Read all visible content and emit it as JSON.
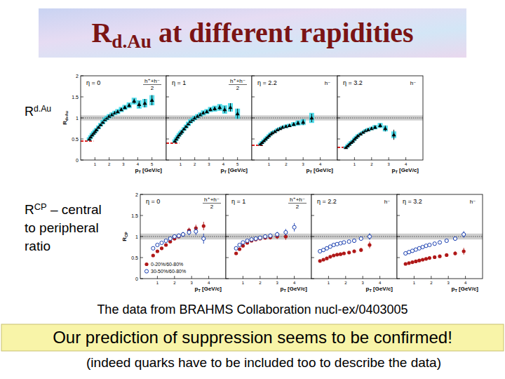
{
  "slide": {
    "title": "Rd.Au at different rapidities",
    "rdau_label": "Rd.Au",
    "rcp_label": [
      "RCP – central",
      "to peripheral",
      "ratio"
    ],
    "source": "The data from BRAHMS Collaboration nucl-ex/0403005",
    "highlight": "Our prediction of suppression seems to be confirmed!",
    "note": "(indeed quarks have to be included too to describe the data)"
  },
  "chart_data": [
    {
      "type": "scatter",
      "title": "η = 0",
      "particle": [
        "h⁺+h⁻",
        "2"
      ],
      "x_label": "pT [GeV/c]",
      "y_label": "Rd+Au",
      "xlim": [
        0,
        6
      ],
      "ylim": [
        0,
        2
      ],
      "xticks": [
        1,
        2,
        3,
        4,
        5
      ],
      "yticks": [
        0,
        0.5,
        1,
        1.5,
        2
      ],
      "tick_labels": true,
      "reference": 1,
      "norm_band": [
        0.94,
        1.06
      ],
      "series": [
        {
          "type": "line",
          "line_style": "dashed",
          "color": "#e02020",
          "x": [
            0,
            0.9
          ],
          "values": [
            0.45,
            0.45
          ]
        },
        {
          "type": "scatter",
          "marker": "triangle",
          "color": "#000000",
          "x": [
            0.6,
            0.7,
            0.8,
            0.9,
            1.0,
            1.1,
            1.25,
            1.4,
            1.55,
            1.7,
            1.85,
            2.0,
            2.2,
            2.4,
            2.6,
            2.85,
            3.1,
            3.4,
            3.75,
            4.1,
            4.5,
            5.0
          ],
          "values": [
            0.5,
            0.55,
            0.6,
            0.64,
            0.68,
            0.72,
            0.78,
            0.84,
            0.9,
            0.96,
            1.0,
            1.04,
            1.08,
            1.12,
            1.15,
            1.2,
            1.25,
            1.3,
            1.4,
            1.32,
            1.35,
            1.42
          ],
          "errors": [
            0.01,
            0.01,
            0.01,
            0.01,
            0.01,
            0.01,
            0.01,
            0.01,
            0.01,
            0.01,
            0.01,
            0.02,
            0.02,
            0.02,
            0.03,
            0.03,
            0.04,
            0.05,
            0.06,
            0.08,
            0.1,
            0.12
          ],
          "syst": [
            0.04,
            0.04,
            0.04,
            0.04,
            0.04,
            0.04,
            0.04,
            0.04,
            0.05,
            0.05,
            0.05,
            0.05,
            0.05,
            0.05,
            0.06,
            0.06,
            0.06,
            0.07,
            0.08,
            0.1,
            0.1,
            0.12
          ]
        }
      ]
    },
    {
      "type": "scatter",
      "title": "η = 1",
      "particle": [
        "h⁺+h⁻",
        "2"
      ],
      "x_label": "pT [GeV/c]",
      "xlim": [
        0,
        6
      ],
      "ylim": [
        0,
        2
      ],
      "xticks": [
        1,
        2,
        3,
        4,
        5
      ],
      "yticks": [
        0,
        0.5,
        1,
        1.5,
        2
      ],
      "tick_labels": "x",
      "reference": 1,
      "norm_band": [
        0.94,
        1.06
      ],
      "series": [
        {
          "type": "line",
          "line_style": "dashed",
          "color": "#e02020",
          "x": [
            0,
            0.9
          ],
          "values": [
            0.4,
            0.4
          ]
        },
        {
          "type": "scatter",
          "marker": "triangle",
          "color": "#000000",
          "x": [
            0.6,
            0.7,
            0.8,
            0.9,
            1.0,
            1.1,
            1.25,
            1.4,
            1.55,
            1.7,
            1.85,
            2.0,
            2.2,
            2.4,
            2.6,
            2.85,
            3.1,
            3.4,
            3.75,
            4.1,
            4.5,
            5.0
          ],
          "values": [
            0.45,
            0.5,
            0.55,
            0.6,
            0.64,
            0.68,
            0.74,
            0.8,
            0.86,
            0.92,
            0.96,
            1.0,
            1.04,
            1.08,
            1.12,
            1.15,
            1.2,
            1.22,
            1.25,
            1.2,
            1.25,
            1.1
          ],
          "errors": [
            0.01,
            0.01,
            0.01,
            0.01,
            0.01,
            0.01,
            0.01,
            0.01,
            0.01,
            0.01,
            0.01,
            0.02,
            0.02,
            0.02,
            0.03,
            0.03,
            0.04,
            0.05,
            0.06,
            0.08,
            0.1,
            0.12
          ],
          "syst": [
            0.04,
            0.04,
            0.04,
            0.04,
            0.04,
            0.04,
            0.04,
            0.04,
            0.05,
            0.05,
            0.05,
            0.05,
            0.05,
            0.05,
            0.06,
            0.06,
            0.06,
            0.07,
            0.08,
            0.1,
            0.1,
            0.12
          ]
        }
      ]
    },
    {
      "type": "scatter",
      "title": "η = 2.2",
      "particle": "h⁻",
      "x_label": "pT [GeV/c]",
      "xlim": [
        0,
        5
      ],
      "ylim": [
        0,
        2
      ],
      "xticks": [
        1,
        2,
        3,
        4
      ],
      "yticks": [
        0,
        0.5,
        1,
        1.5,
        2
      ],
      "tick_labels": "x",
      "reference": 1,
      "norm_band": [
        0.94,
        1.06
      ],
      "series": [
        {
          "type": "line",
          "line_style": "dashed",
          "color": "#e02020",
          "x": [
            0,
            0.7
          ],
          "values": [
            0.35,
            0.35
          ]
        },
        {
          "type": "scatter",
          "marker": "triangle",
          "color": "#000000",
          "x": [
            0.5,
            0.6,
            0.7,
            0.8,
            0.9,
            1.0,
            1.1,
            1.2,
            1.35,
            1.5,
            1.65,
            1.8,
            2.0,
            2.2,
            2.45,
            2.7,
            3.0,
            3.5
          ],
          "values": [
            0.38,
            0.42,
            0.46,
            0.5,
            0.54,
            0.58,
            0.62,
            0.65,
            0.68,
            0.72,
            0.75,
            0.78,
            0.8,
            0.82,
            0.85,
            0.88,
            0.9,
            1.0
          ],
          "errors": [
            0.01,
            0.01,
            0.01,
            0.01,
            0.01,
            0.01,
            0.01,
            0.01,
            0.01,
            0.01,
            0.02,
            0.02,
            0.02,
            0.03,
            0.04,
            0.05,
            0.07,
            0.1
          ],
          "syst": [
            0.03,
            0.03,
            0.03,
            0.03,
            0.03,
            0.03,
            0.03,
            0.03,
            0.03,
            0.03,
            0.03,
            0.03,
            0.04,
            0.04,
            0.05,
            0.06,
            0.07,
            0.12
          ]
        }
      ]
    },
    {
      "type": "scatter",
      "title": "η = 3.2",
      "particle": "h⁻",
      "x_label": "pT [GeV/c]",
      "xlim": [
        0,
        5
      ],
      "ylim": [
        0,
        2
      ],
      "xticks": [
        1,
        2,
        3,
        4
      ],
      "yticks": [
        0,
        0.5,
        1,
        1.5,
        2
      ],
      "tick_labels": "x",
      "reference": 1,
      "norm_band": [
        0.94,
        1.06
      ],
      "series": [
        {
          "type": "line",
          "line_style": "dashed",
          "color": "#e02020",
          "x": [
            0,
            0.6
          ],
          "values": [
            0.3,
            0.3
          ]
        },
        {
          "type": "scatter",
          "marker": "triangle",
          "color": "#000000",
          "x": [
            0.5,
            0.6,
            0.7,
            0.8,
            0.9,
            1.0,
            1.1,
            1.2,
            1.35,
            1.5,
            1.65,
            1.8,
            2.0,
            2.2,
            2.5,
            2.8,
            3.3
          ],
          "values": [
            0.3,
            0.34,
            0.38,
            0.42,
            0.45,
            0.5,
            0.54,
            0.58,
            0.62,
            0.66,
            0.7,
            0.72,
            0.75,
            0.78,
            0.82,
            0.75,
            0.6
          ],
          "errors": [
            0.01,
            0.01,
            0.01,
            0.01,
            0.01,
            0.01,
            0.01,
            0.01,
            0.01,
            0.02,
            0.02,
            0.02,
            0.03,
            0.04,
            0.05,
            0.07,
            0.12
          ],
          "syst": [
            0.03,
            0.03,
            0.03,
            0.03,
            0.03,
            0.03,
            0.03,
            0.03,
            0.03,
            0.03,
            0.03,
            0.04,
            0.04,
            0.05,
            0.06,
            0.07,
            0.08
          ]
        }
      ]
    },
    {
      "type": "scatter",
      "title": "η = 0",
      "particle": [
        "h⁺+h⁻",
        "2"
      ],
      "x_label": "pT [GeV/c]",
      "y_label": "RCP",
      "xlim": [
        0,
        5
      ],
      "ylim": [
        0,
        2
      ],
      "xticks": [
        1,
        2,
        3,
        4
      ],
      "yticks": [
        0,
        0.5,
        1,
        1.5,
        2
      ],
      "tick_labels": true,
      "reference": 1,
      "norm_band": [
        0.93,
        1.07
      ],
      "legend": "lower left",
      "series": [
        {
          "name": "0-20%/60-80%",
          "marker": "circle",
          "color": "#b01818",
          "x": [
            0.75,
            1.0,
            1.25,
            1.5,
            1.75,
            2.0,
            2.25,
            2.5,
            2.85,
            3.25,
            3.7
          ],
          "values": [
            0.55,
            0.65,
            0.72,
            0.8,
            0.88,
            0.95,
            1.0,
            1.05,
            1.15,
            1.2,
            1.25
          ],
          "errors": [
            0.02,
            0.02,
            0.02,
            0.03,
            0.03,
            0.04,
            0.04,
            0.05,
            0.06,
            0.08,
            0.1
          ]
        },
        {
          "name": "30-50%/60-80%",
          "marker": "open_circle",
          "color": "#1a3fb0",
          "x": [
            0.75,
            1.0,
            1.25,
            1.5,
            1.75,
            2.0,
            2.25,
            2.5,
            2.85,
            3.25,
            3.7
          ],
          "values": [
            0.72,
            0.8,
            0.85,
            0.9,
            0.95,
            1.0,
            1.02,
            1.05,
            1.1,
            1.12,
            0.95
          ],
          "errors": [
            0.02,
            0.02,
            0.03,
            0.03,
            0.04,
            0.04,
            0.05,
            0.06,
            0.07,
            0.09,
            0.12
          ]
        }
      ]
    },
    {
      "type": "scatter",
      "title": "η = 1",
      "particle": [
        "h⁺+h⁻",
        "2"
      ],
      "x_label": "pT [GeV/c]",
      "xlim": [
        0,
        5
      ],
      "ylim": [
        0,
        2
      ],
      "xticks": [
        1,
        2,
        3,
        4
      ],
      "yticks": [
        0,
        0.5,
        1,
        1.5,
        2
      ],
      "tick_labels": "x",
      "reference": 1,
      "norm_band": [
        0.93,
        1.07
      ],
      "series": [
        {
          "marker": "circle",
          "color": "#b01818",
          "x": [
            0.6,
            0.8,
            1.0,
            1.25,
            1.5,
            1.75,
            2.0,
            2.3,
            2.6,
            3.0,
            3.5
          ],
          "values": [
            0.6,
            0.7,
            0.78,
            0.85,
            0.9,
            0.93,
            0.95,
            0.97,
            0.98,
            1.0,
            1.0
          ],
          "errors": [
            0.02,
            0.02,
            0.02,
            0.02,
            0.03,
            0.03,
            0.03,
            0.04,
            0.05,
            0.06,
            0.08
          ]
        },
        {
          "marker": "open_circle",
          "color": "#1a3fb0",
          "x": [
            0.6,
            0.8,
            1.0,
            1.25,
            1.5,
            1.75,
            2.0,
            2.3,
            2.6,
            3.0,
            3.5,
            4.0
          ],
          "values": [
            0.72,
            0.8,
            0.86,
            0.9,
            0.93,
            0.95,
            0.97,
            1.0,
            1.02,
            1.05,
            1.1,
            1.22
          ],
          "errors": [
            0.02,
            0.02,
            0.02,
            0.02,
            0.03,
            0.03,
            0.03,
            0.04,
            0.05,
            0.06,
            0.08,
            0.1
          ]
        }
      ]
    },
    {
      "type": "scatter",
      "title": "η = 2.2",
      "particle": "h⁻",
      "x_label": "pT [GeV/c]",
      "xlim": [
        0,
        5
      ],
      "ylim": [
        0,
        2
      ],
      "xticks": [
        1,
        2,
        3,
        4
      ],
      "yticks": [
        0,
        0.5,
        1,
        1.5,
        2
      ],
      "tick_labels": "x",
      "reference": 1,
      "norm_band": [
        0.93,
        1.07
      ],
      "series": [
        {
          "marker": "circle",
          "color": "#b01818",
          "x": [
            0.5,
            0.7,
            0.9,
            1.1,
            1.3,
            1.5,
            1.7,
            1.9,
            2.2,
            2.5,
            2.9,
            3.4
          ],
          "values": [
            0.42,
            0.45,
            0.48,
            0.52,
            0.55,
            0.57,
            0.58,
            0.6,
            0.62,
            0.65,
            0.68,
            0.8
          ],
          "errors": [
            0.01,
            0.01,
            0.01,
            0.01,
            0.02,
            0.02,
            0.02,
            0.02,
            0.03,
            0.04,
            0.05,
            0.08
          ]
        },
        {
          "marker": "open_circle",
          "color": "#1a3fb0",
          "x": [
            0.5,
            0.7,
            0.9,
            1.1,
            1.3,
            1.5,
            1.7,
            1.9,
            2.2,
            2.5,
            2.9,
            3.4
          ],
          "values": [
            0.65,
            0.68,
            0.72,
            0.76,
            0.8,
            0.82,
            0.84,
            0.86,
            0.88,
            0.9,
            0.95,
            1.0
          ],
          "errors": [
            0.01,
            0.01,
            0.01,
            0.01,
            0.02,
            0.02,
            0.02,
            0.02,
            0.03,
            0.04,
            0.05,
            0.08
          ]
        }
      ]
    },
    {
      "type": "scatter",
      "title": "η = 3.2",
      "particle": "h⁻",
      "x_label": "pT [GeV/c]",
      "xlim": [
        0,
        5
      ],
      "ylim": [
        0,
        2
      ],
      "xticks": [
        1,
        2,
        3,
        4
      ],
      "yticks": [
        0,
        0.5,
        1,
        1.5,
        2
      ],
      "tick_labels": "x",
      "reference": 1,
      "norm_band": [
        0.93,
        1.07
      ],
      "series": [
        {
          "marker": "circle",
          "color": "#b01818",
          "x": [
            0.5,
            0.7,
            0.9,
            1.1,
            1.3,
            1.5,
            1.7,
            1.9,
            2.2,
            2.5,
            2.9,
            3.4,
            3.9
          ],
          "values": [
            0.35,
            0.37,
            0.39,
            0.41,
            0.43,
            0.45,
            0.47,
            0.49,
            0.51,
            0.53,
            0.56,
            0.6,
            0.65
          ],
          "errors": [
            0.01,
            0.01,
            0.01,
            0.01,
            0.01,
            0.02,
            0.02,
            0.02,
            0.02,
            0.03,
            0.04,
            0.05,
            0.08
          ]
        },
        {
          "marker": "open_circle",
          "color": "#1a3fb0",
          "x": [
            0.5,
            0.7,
            0.9,
            1.1,
            1.3,
            1.5,
            1.7,
            1.9,
            2.2,
            2.5,
            2.9,
            3.4,
            3.9
          ],
          "values": [
            0.6,
            0.63,
            0.66,
            0.69,
            0.72,
            0.75,
            0.78,
            0.8,
            0.83,
            0.86,
            0.9,
            0.95,
            1.05
          ],
          "errors": [
            0.01,
            0.01,
            0.01,
            0.01,
            0.01,
            0.02,
            0.02,
            0.02,
            0.02,
            0.03,
            0.04,
            0.05,
            0.08
          ]
        }
      ]
    }
  ]
}
